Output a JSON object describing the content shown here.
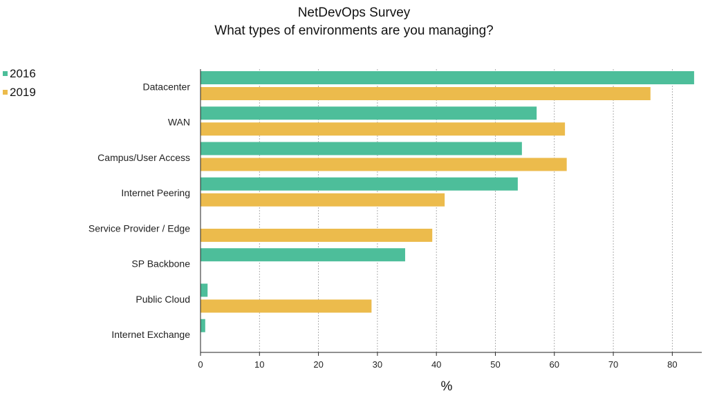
{
  "chart_data": {
    "type": "bar",
    "orientation": "horizontal",
    "title": "NetDevOps Survey",
    "subtitle": "What types of environments are you managing?",
    "xlabel": "%",
    "ylabel": "",
    "xlim": [
      0,
      85
    ],
    "xticks": [
      0,
      10,
      20,
      30,
      40,
      50,
      60,
      70,
      80
    ],
    "grid": "vertical dashed",
    "legend_position": "top-left",
    "categories": [
      "Datacenter",
      "WAN",
      "Campus/User Access",
      "Internet Peering",
      "Service Provider / Edge",
      "SP Backbone",
      "Public Cloud",
      "Internet Exchange"
    ],
    "series": [
      {
        "name": "2016",
        "color": "#4dbe9a",
        "values": [
          83.7,
          57.0,
          54.5,
          53.8,
          null,
          34.7,
          1.2,
          0.8
        ]
      },
      {
        "name": "2019",
        "color": "#ecbb4c",
        "values": [
          76.3,
          61.8,
          62.1,
          41.4,
          39.3,
          null,
          29.0,
          null
        ]
      }
    ]
  }
}
